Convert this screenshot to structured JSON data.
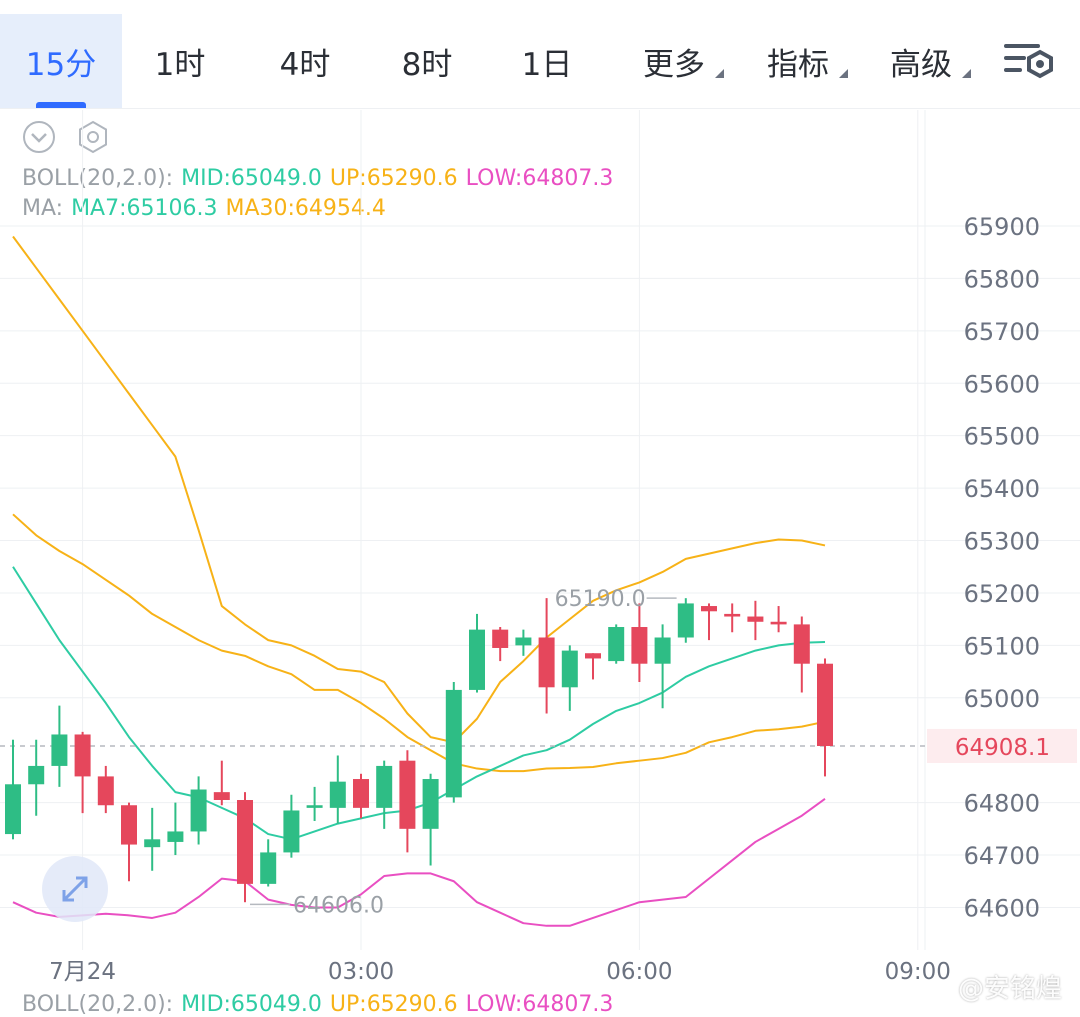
{
  "tabs": [
    {
      "label": "15分",
      "active": true
    },
    {
      "label": "1时",
      "active": false
    },
    {
      "label": "4时",
      "active": false
    },
    {
      "label": "8时",
      "active": false
    },
    {
      "label": "1日",
      "active": false
    },
    {
      "label": "更多",
      "active": false,
      "dropdown": true
    },
    {
      "label": "指标",
      "active": false,
      "dropdown": true
    },
    {
      "label": "高级",
      "active": false,
      "dropdown": true
    }
  ],
  "toolbar": {
    "icons": [
      "chevron-down-icon",
      "hexagon-settings-icon",
      "chart-settings-icon",
      "expand-icon"
    ]
  },
  "indicators": {
    "boll": {
      "label": "BOLL(20,2.0):",
      "mid": "MID:65049.0",
      "up": "UP:65290.6",
      "low": "LOW:64807.3"
    },
    "ma": {
      "label": "MA:",
      "ma7": "MA7:65106.3",
      "ma30": "MA30:64954.4"
    }
  },
  "colors": {
    "up": "#2ebd85",
    "down": "#e5475c",
    "boll_mid": "#2ecca3",
    "boll_up": "#f7b217",
    "boll_low": "#e94fc2",
    "ma7": "#2ecca3",
    "ma30": "#f7b217",
    "accent": "#2f6bff",
    "grid": "#eef0f3"
  },
  "chart_data": {
    "type": "candlestick",
    "y_axis_ticks": [
      65900,
      65800,
      65700,
      65600,
      65500,
      65400,
      65300,
      65200,
      65100,
      65000,
      64800,
      64700,
      64600
    ],
    "x_axis_ticks": [
      {
        "label": "7月24",
        "index": 3
      },
      {
        "label": "03:00",
        "index": 15
      },
      {
        "label": "06:00",
        "index": 27
      },
      {
        "label": "09:00",
        "index": 39
      }
    ],
    "current_price": "64908.1",
    "current_value": 64908.1,
    "high_label": "65190.0",
    "high_value": 65190.0,
    "high_index": 23,
    "low_label": "64606.0",
    "low_value": 64606.0,
    "low_index": 10,
    "candles": [
      {
        "o": 64740,
        "h": 64920,
        "l": 64730,
        "c": 64835
      },
      {
        "o": 64835,
        "h": 64920,
        "l": 64775,
        "c": 64870
      },
      {
        "o": 64870,
        "h": 64985,
        "l": 64830,
        "c": 64930
      },
      {
        "o": 64930,
        "h": 64935,
        "l": 64780,
        "c": 64850
      },
      {
        "o": 64850,
        "h": 64870,
        "l": 64780,
        "c": 64795
      },
      {
        "o": 64795,
        "h": 64800,
        "l": 64650,
        "c": 64720
      },
      {
        "o": 64715,
        "h": 64790,
        "l": 64670,
        "c": 64730
      },
      {
        "o": 64725,
        "h": 64800,
        "l": 64700,
        "c": 64745
      },
      {
        "o": 64745,
        "h": 64850,
        "l": 64720,
        "c": 64825
      },
      {
        "o": 64820,
        "h": 64880,
        "l": 64795,
        "c": 64805
      },
      {
        "o": 64805,
        "h": 64820,
        "l": 64610,
        "c": 64645
      },
      {
        "o": 64645,
        "h": 64730,
        "l": 64640,
        "c": 64705
      },
      {
        "o": 64705,
        "h": 64815,
        "l": 64695,
        "c": 64785
      },
      {
        "o": 64790,
        "h": 64830,
        "l": 64765,
        "c": 64795
      },
      {
        "o": 64790,
        "h": 64890,
        "l": 64760,
        "c": 64840
      },
      {
        "o": 64845,
        "h": 64855,
        "l": 64770,
        "c": 64790
      },
      {
        "o": 64790,
        "h": 64880,
        "l": 64750,
        "c": 64870
      },
      {
        "o": 64880,
        "h": 64900,
        "l": 64705,
        "c": 64750
      },
      {
        "o": 64750,
        "h": 64855,
        "l": 64680,
        "c": 64845
      },
      {
        "o": 64810,
        "h": 65030,
        "l": 64800,
        "c": 65015
      },
      {
        "o": 65015,
        "h": 65160,
        "l": 65010,
        "c": 65130
      },
      {
        "o": 65130,
        "h": 65135,
        "l": 65070,
        "c": 65095
      },
      {
        "o": 65100,
        "h": 65130,
        "l": 65080,
        "c": 65115
      },
      {
        "o": 65115,
        "h": 65190,
        "l": 64970,
        "c": 65020
      },
      {
        "o": 65020,
        "h": 65100,
        "l": 64975,
        "c": 65090
      },
      {
        "o": 65085,
        "h": 65085,
        "l": 65035,
        "c": 65075
      },
      {
        "o": 65070,
        "h": 65140,
        "l": 65065,
        "c": 65135
      },
      {
        "o": 65135,
        "h": 65180,
        "l": 65030,
        "c": 65065
      },
      {
        "o": 65065,
        "h": 65140,
        "l": 64980,
        "c": 65115
      },
      {
        "o": 65115,
        "h": 65190,
        "l": 65105,
        "c": 65180
      },
      {
        "o": 65175,
        "h": 65180,
        "l": 65110,
        "c": 65165
      },
      {
        "o": 65160,
        "h": 65180,
        "l": 65125,
        "c": 65155
      },
      {
        "o": 65155,
        "h": 65185,
        "l": 65110,
        "c": 65145
      },
      {
        "o": 65145,
        "h": 65175,
        "l": 65125,
        "c": 65140
      },
      {
        "o": 65140,
        "h": 65155,
        "l": 65010,
        "c": 65065
      },
      {
        "o": 65065,
        "h": 65075,
        "l": 64850,
        "c": 64908
      }
    ],
    "boll_up": [
      65880,
      65820,
      65760,
      65700,
      65640,
      65580,
      65520,
      65460,
      65320,
      65175,
      65140,
      65110,
      65100,
      65080,
      65055,
      65050,
      65030,
      64970,
      64925,
      64915,
      64960,
      65030,
      65070,
      65115,
      65150,
      65185,
      65205,
      65220,
      65240,
      65265,
      65275,
      65285,
      65295,
      65302,
      65300,
      65290.6
    ],
    "boll_mid": [
      65350,
      65310,
      65280,
      65255,
      65225,
      65195,
      65160,
      65135,
      65110,
      65090,
      65080,
      65060,
      65045,
      65015,
      65015,
      64990,
      64960,
      64925,
      64900,
      64875,
      64865,
      64860,
      64860,
      64865,
      64866,
      64868,
      64875,
      64880,
      64885,
      64895,
      64915,
      64925,
      64937,
      64940,
      64945,
      64954.4
    ],
    "boll_mid_line": [
      65300,
      65270,
      65230,
      65200,
      65165,
      65130,
      65100,
      65070,
      65040,
      65020,
      65010,
      64990,
      64975,
      64950,
      64930,
      64905,
      64875,
      64830,
      64790,
      64760,
      64805,
      64820,
      64835,
      64850,
      64870,
      64890,
      64910,
      64935,
      64955,
      64980,
      65000,
      65020,
      65035,
      65040,
      65045,
      65049.0
    ],
    "boll_low": [
      64610,
      64590,
      64582,
      64585,
      64588,
      64585,
      64580,
      64590,
      64620,
      64655,
      64650,
      64615,
      64605,
      64600,
      64600,
      64625,
      64660,
      64665,
      64665,
      64650,
      64610,
      64590,
      64570,
      64565,
      64565,
      64580,
      64595,
      64610,
      64615,
      64620,
      64655,
      64690,
      64725,
      64750,
      64775,
      64807.3
    ],
    "ma7": [
      65250,
      65180,
      65110,
      65050,
      64990,
      64925,
      64870,
      64820,
      64810,
      64790,
      64770,
      64740,
      64730,
      64745,
      64760,
      64770,
      64780,
      64785,
      64800,
      64825,
      64850,
      64870,
      64890,
      64900,
      64920,
      64950,
      64975,
      64990,
      65010,
      65040,
      65060,
      65075,
      65090,
      65100,
      65105,
      65106.3
    ],
    "ma30": [
      65340,
      65300,
      65270,
      65240,
      65210,
      65180,
      65150,
      65120,
      65085,
      65055,
      65025,
      64995,
      64965,
      64935,
      64905,
      64880,
      64860,
      64840,
      64845,
      64855,
      64865,
      64872,
      64880,
      64887,
      64888,
      64893,
      64898,
      64903,
      64910,
      64920,
      64930,
      64938,
      64943,
      64947,
      64950,
      64954.4
    ]
  },
  "bottom": {
    "label": "BOLL(20,2.0):",
    "mid": "MID:65049.0",
    "up": "UP:65290.6",
    "low": "LOW:64807.3"
  },
  "watermark": "@安铭煌"
}
